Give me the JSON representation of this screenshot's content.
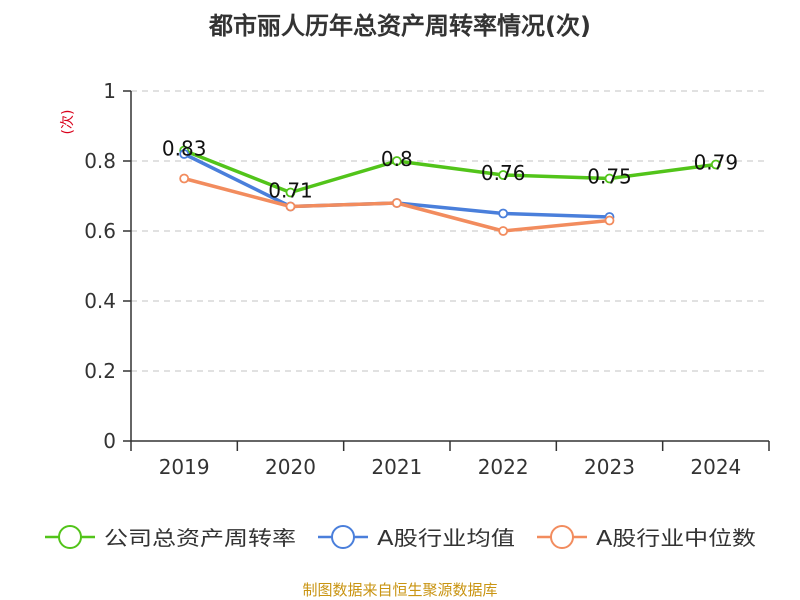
{
  "chart_data": {
    "type": "line",
    "title": "都市丽人历年总资产周转率情况(次)",
    "ylabel": "(次)",
    "xlabel": "",
    "categories": [
      "2019",
      "2020",
      "2021",
      "2022",
      "2023",
      "2024"
    ],
    "ylim": [
      0,
      1
    ],
    "yticks": [
      0,
      0.2,
      0.4,
      0.6,
      0.8,
      1
    ],
    "ytick_labels": [
      "0",
      "0.2",
      "0.4",
      "0.6",
      "0.8",
      "1"
    ],
    "grid": true,
    "legend_position": "bottom",
    "source": "制图数据来自恒生聚源数据库",
    "series": [
      {
        "name": "公司总资产周转率",
        "color": "#52c41a",
        "values": [
          0.83,
          0.71,
          0.8,
          0.76,
          0.75,
          0.79
        ],
        "labels": [
          "0.83",
          "0.71",
          "0.8",
          "0.76",
          "0.75",
          "0.79"
        ]
      },
      {
        "name": "A股行业均值",
        "color": "#4a7fdb",
        "values": [
          0.82,
          0.67,
          0.68,
          0.65,
          0.64,
          null
        ]
      },
      {
        "name": "A股行业中位数",
        "color": "#f28c5e",
        "values": [
          0.75,
          0.67,
          0.68,
          0.6,
          0.63,
          null
        ]
      }
    ]
  }
}
